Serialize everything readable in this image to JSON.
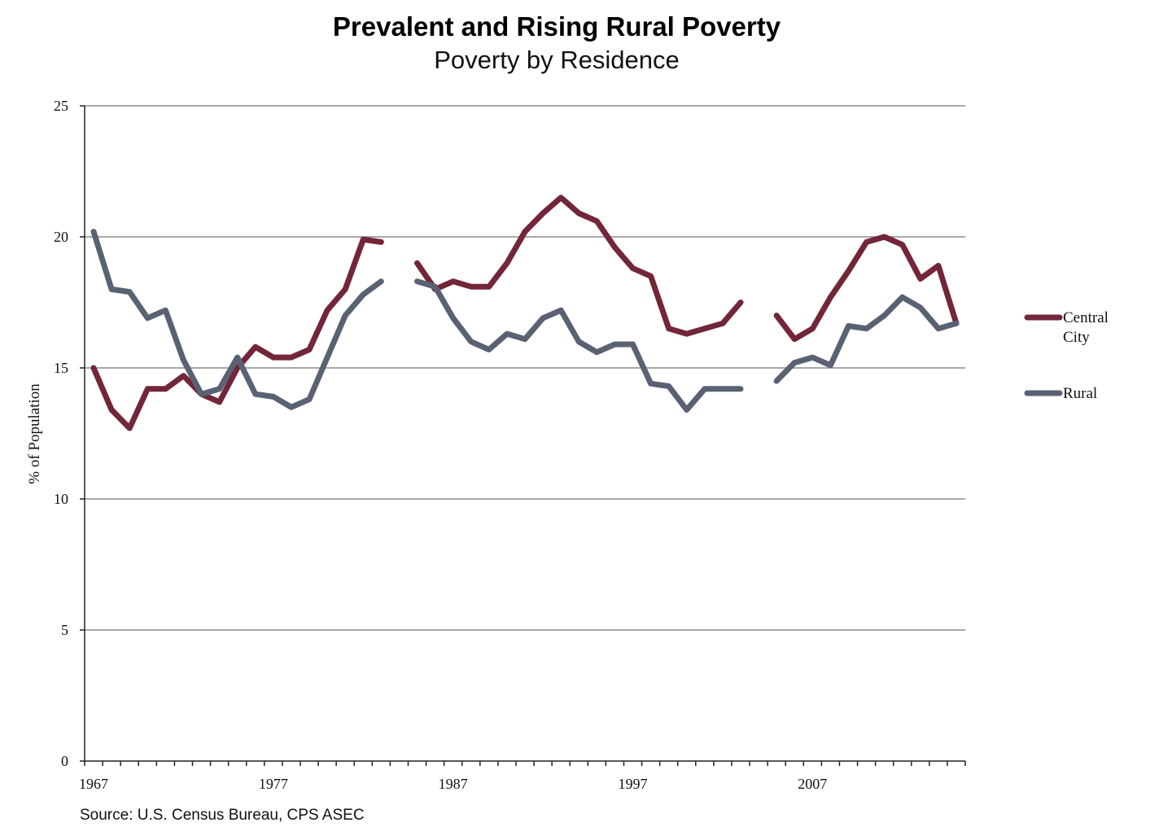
{
  "chart_data": {
    "type": "line",
    "title": "Prevalent and Rising Rural Poverty",
    "subtitle": "Poverty by Residence",
    "xlabel": "",
    "ylabel": "% of Population",
    "source": "Source: U.S. Census Bureau, CPS ASEC",
    "xlim": [
      1966.5,
      2015.5
    ],
    "ylim": [
      0,
      25
    ],
    "x_ticks": [
      1967,
      1977,
      1987,
      1997,
      2007
    ],
    "y_ticks": [
      0,
      5,
      10,
      15,
      20,
      25
    ],
    "grid": true,
    "legend_position": "right",
    "x": [
      1967,
      1968,
      1969,
      1970,
      1971,
      1972,
      1973,
      1974,
      1975,
      1976,
      1977,
      1978,
      1979,
      1980,
      1981,
      1982,
      1983,
      1984,
      1985,
      1986,
      1987,
      1988,
      1989,
      1990,
      1991,
      1992,
      1993,
      1994,
      1995,
      1996,
      1997,
      1998,
      1999,
      2000,
      2001,
      2002,
      2003,
      2004,
      2005,
      2006,
      2007,
      2008,
      2009,
      2010,
      2011,
      2012,
      2013,
      2014,
      2015
    ],
    "series": [
      {
        "name": "Central City",
        "color": "#722637",
        "values": [
          15.0,
          13.4,
          12.7,
          14.2,
          14.2,
          14.7,
          14.0,
          13.7,
          15.0,
          15.8,
          15.4,
          15.4,
          15.7,
          17.2,
          18.0,
          19.9,
          19.8,
          null,
          19.0,
          18.0,
          18.3,
          18.1,
          18.1,
          19.0,
          20.2,
          20.9,
          21.5,
          20.9,
          20.6,
          19.6,
          18.8,
          18.5,
          16.5,
          16.3,
          16.5,
          16.7,
          17.5,
          null,
          17.0,
          16.1,
          16.5,
          17.7,
          18.7,
          19.8,
          20.0,
          19.7,
          18.4,
          18.9,
          16.7
        ]
      },
      {
        "name": "Rural",
        "color": "#596272",
        "values": [
          20.2,
          18.0,
          17.9,
          16.9,
          17.2,
          15.3,
          14.0,
          14.2,
          15.4,
          14.0,
          13.9,
          13.5,
          13.8,
          15.4,
          17.0,
          17.8,
          18.3,
          null,
          18.3,
          18.1,
          16.9,
          16.0,
          15.7,
          16.3,
          16.1,
          16.9,
          17.2,
          16.0,
          15.6,
          15.9,
          15.9,
          14.4,
          14.3,
          13.4,
          14.2,
          14.2,
          14.2,
          null,
          14.5,
          15.2,
          15.4,
          15.1,
          16.6,
          16.5,
          17.0,
          17.7,
          17.3,
          16.5,
          16.7
        ]
      }
    ],
    "legend": [
      {
        "label_line1": "Central",
        "label_line2": "City",
        "color": "#722637"
      },
      {
        "label_line1": "Rural",
        "label_line2": "",
        "color": "#596272"
      }
    ]
  }
}
